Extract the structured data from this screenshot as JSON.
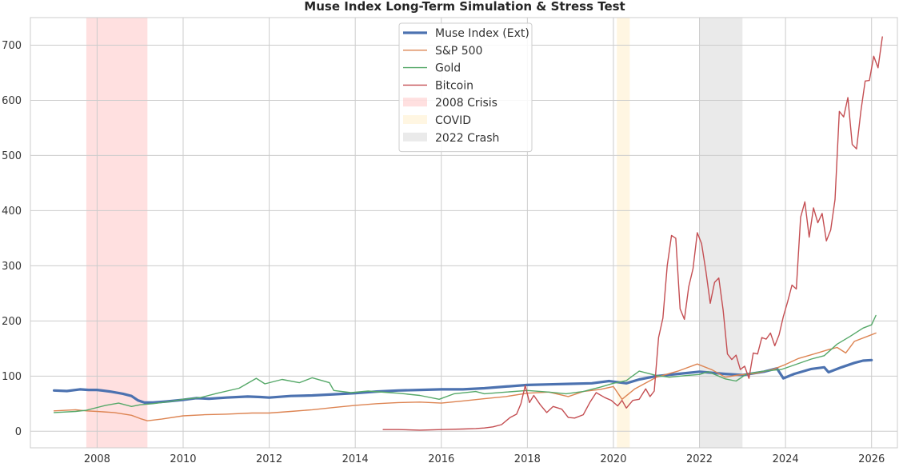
{
  "chart_data": {
    "type": "line",
    "title": "Muse Index Long-Term Simulation & Stress Test",
    "xlabel": "",
    "ylabel": "",
    "xlim": [
      2006.45,
      2026.6
    ],
    "ylim": [
      -30,
      750
    ],
    "x_ticks": [
      2008,
      2010,
      2012,
      2014,
      2016,
      2018,
      2020,
      2022,
      2024,
      2026
    ],
    "y_ticks": [
      0,
      100,
      200,
      300,
      400,
      500,
      600,
      700
    ],
    "grid": true,
    "legend_position": "top-center",
    "shaded_regions": [
      {
        "name": "2008 Crisis",
        "start": 2007.75,
        "end": 2009.17,
        "color": "#ff9999"
      },
      {
        "name": "COVID",
        "start": 2020.08,
        "end": 2020.38,
        "color": "#ffe0a0"
      },
      {
        "name": "2022 Crash",
        "start": 2022.0,
        "end": 2023.0,
        "color": "#bbbbbb"
      }
    ],
    "series": [
      {
        "name": "Muse Index (Ext)",
        "color": "#4c72b0",
        "width": 3.2,
        "points": [
          [
            2007.0,
            74
          ],
          [
            2007.3,
            73
          ],
          [
            2007.6,
            76
          ],
          [
            2007.8,
            75
          ],
          [
            2008.0,
            75
          ],
          [
            2008.3,
            72
          ],
          [
            2008.6,
            68
          ],
          [
            2008.8,
            64
          ],
          [
            2008.95,
            56
          ],
          [
            2009.1,
            52
          ],
          [
            2009.3,
            52
          ],
          [
            2009.6,
            54
          ],
          [
            2010.0,
            57
          ],
          [
            2010.3,
            60
          ],
          [
            2010.6,
            59
          ],
          [
            2011.0,
            61
          ],
          [
            2011.5,
            63
          ],
          [
            2011.8,
            62
          ],
          [
            2012.0,
            61
          ],
          [
            2012.5,
            64
          ],
          [
            2013.0,
            65
          ],
          [
            2013.5,
            67
          ],
          [
            2014.0,
            69
          ],
          [
            2014.5,
            72
          ],
          [
            2015.0,
            74
          ],
          [
            2015.5,
            75
          ],
          [
            2016.0,
            76
          ],
          [
            2016.5,
            76
          ],
          [
            2017.0,
            78
          ],
          [
            2017.5,
            81
          ],
          [
            2018.0,
            84
          ],
          [
            2018.5,
            85
          ],
          [
            2019.0,
            86
          ],
          [
            2019.5,
            87
          ],
          [
            2019.9,
            91
          ],
          [
            2020.1,
            89
          ],
          [
            2020.3,
            87
          ],
          [
            2020.6,
            94
          ],
          [
            2021.0,
            100
          ],
          [
            2021.5,
            104
          ],
          [
            2022.0,
            108
          ],
          [
            2022.3,
            106
          ],
          [
            2022.6,
            104
          ],
          [
            2023.0,
            102
          ],
          [
            2023.5,
            108
          ],
          [
            2023.8,
            114
          ],
          [
            2023.95,
            96
          ],
          [
            2024.2,
            104
          ],
          [
            2024.6,
            113
          ],
          [
            2024.9,
            116
          ],
          [
            2025.0,
            107
          ],
          [
            2025.3,
            116
          ],
          [
            2025.6,
            124
          ],
          [
            2025.8,
            128
          ],
          [
            2026.0,
            129
          ]
        ]
      },
      {
        "name": "S&P 500",
        "color": "#dd8452",
        "width": 1.4,
        "points": [
          [
            2007.0,
            37
          ],
          [
            2007.5,
            39
          ],
          [
            2007.75,
            37
          ],
          [
            2008.0,
            36
          ],
          [
            2008.4,
            34
          ],
          [
            2008.8,
            29
          ],
          [
            2009.0,
            23
          ],
          [
            2009.17,
            19
          ],
          [
            2009.5,
            22
          ],
          [
            2010.0,
            28
          ],
          [
            2010.5,
            30
          ],
          [
            2011.0,
            31
          ],
          [
            2011.6,
            33
          ],
          [
            2012.0,
            33
          ],
          [
            2012.5,
            36
          ],
          [
            2013.0,
            39
          ],
          [
            2013.5,
            43
          ],
          [
            2014.0,
            47
          ],
          [
            2014.5,
            50
          ],
          [
            2015.0,
            52
          ],
          [
            2015.5,
            53
          ],
          [
            2016.0,
            51
          ],
          [
            2016.5,
            55
          ],
          [
            2017.0,
            59
          ],
          [
            2017.5,
            63
          ],
          [
            2018.0,
            69
          ],
          [
            2018.5,
            71
          ],
          [
            2018.95,
            63
          ],
          [
            2019.3,
            72
          ],
          [
            2019.7,
            76
          ],
          [
            2020.0,
            81
          ],
          [
            2020.2,
            58
          ],
          [
            2020.5,
            77
          ],
          [
            2021.0,
            98
          ],
          [
            2021.5,
            109
          ],
          [
            2021.95,
            122
          ],
          [
            2022.3,
            111
          ],
          [
            2022.6,
            98
          ],
          [
            2022.9,
            102
          ],
          [
            2023.3,
            105
          ],
          [
            2023.7,
            112
          ],
          [
            2024.0,
            121
          ],
          [
            2024.3,
            132
          ],
          [
            2024.7,
            141
          ],
          [
            2025.0,
            148
          ],
          [
            2025.2,
            152
          ],
          [
            2025.4,
            142
          ],
          [
            2025.6,
            163
          ],
          [
            2025.9,
            172
          ],
          [
            2026.1,
            178
          ]
        ]
      },
      {
        "name": "Gold",
        "color": "#55a868",
        "width": 1.4,
        "points": [
          [
            2007.0,
            34
          ],
          [
            2007.5,
            36
          ],
          [
            2007.75,
            38
          ],
          [
            2008.2,
            47
          ],
          [
            2008.5,
            51
          ],
          [
            2008.8,
            45
          ],
          [
            2009.0,
            48
          ],
          [
            2009.3,
            50
          ],
          [
            2009.7,
            54
          ],
          [
            2010.0,
            58
          ],
          [
            2010.4,
            61
          ],
          [
            2010.8,
            69
          ],
          [
            2011.3,
            78
          ],
          [
            2011.7,
            96
          ],
          [
            2011.9,
            86
          ],
          [
            2012.3,
            94
          ],
          [
            2012.7,
            88
          ],
          [
            2013.0,
            97
          ],
          [
            2013.4,
            88
          ],
          [
            2013.5,
            74
          ],
          [
            2013.9,
            70
          ],
          [
            2014.3,
            73
          ],
          [
            2014.8,
            70
          ],
          [
            2015.0,
            69
          ],
          [
            2015.5,
            65
          ],
          [
            2015.95,
            58
          ],
          [
            2016.3,
            68
          ],
          [
            2016.8,
            72
          ],
          [
            2017.0,
            68
          ],
          [
            2017.5,
            71
          ],
          [
            2018.0,
            74
          ],
          [
            2018.5,
            71
          ],
          [
            2018.9,
            68
          ],
          [
            2019.3,
            72
          ],
          [
            2019.7,
            80
          ],
          [
            2020.0,
            87
          ],
          [
            2020.3,
            92
          ],
          [
            2020.6,
            109
          ],
          [
            2021.0,
            101
          ],
          [
            2021.3,
            98
          ],
          [
            2021.7,
            101
          ],
          [
            2022.0,
            103
          ],
          [
            2022.2,
            108
          ],
          [
            2022.6,
            95
          ],
          [
            2022.85,
            91
          ],
          [
            2023.1,
            104
          ],
          [
            2023.5,
            109
          ],
          [
            2023.9,
            112
          ],
          [
            2024.2,
            120
          ],
          [
            2024.6,
            131
          ],
          [
            2024.9,
            137
          ],
          [
            2025.2,
            158
          ],
          [
            2025.5,
            172
          ],
          [
            2025.8,
            187
          ],
          [
            2026.0,
            193
          ],
          [
            2026.1,
            210
          ]
        ]
      },
      {
        "name": "Bitcoin",
        "color": "#c44e52",
        "width": 1.4,
        "points": [
          [
            2014.65,
            3
          ],
          [
            2015.0,
            3
          ],
          [
            2015.5,
            2
          ],
          [
            2016.0,
            3
          ],
          [
            2016.5,
            4
          ],
          [
            2016.8,
            5
          ],
          [
            2017.0,
            6
          ],
          [
            2017.2,
            8
          ],
          [
            2017.4,
            12
          ],
          [
            2017.6,
            25
          ],
          [
            2017.75,
            31
          ],
          [
            2017.85,
            50
          ],
          [
            2017.95,
            83
          ],
          [
            2018.05,
            52
          ],
          [
            2018.15,
            65
          ],
          [
            2018.3,
            48
          ],
          [
            2018.45,
            34
          ],
          [
            2018.6,
            45
          ],
          [
            2018.8,
            40
          ],
          [
            2018.95,
            25
          ],
          [
            2019.1,
            24
          ],
          [
            2019.3,
            30
          ],
          [
            2019.45,
            52
          ],
          [
            2019.6,
            70
          ],
          [
            2019.8,
            61
          ],
          [
            2019.95,
            56
          ],
          [
            2020.1,
            46
          ],
          [
            2020.2,
            56
          ],
          [
            2020.3,
            42
          ],
          [
            2020.45,
            56
          ],
          [
            2020.6,
            58
          ],
          [
            2020.75,
            77
          ],
          [
            2020.85,
            63
          ],
          [
            2020.95,
            73
          ],
          [
            2021.05,
            170
          ],
          [
            2021.15,
            205
          ],
          [
            2021.25,
            300
          ],
          [
            2021.35,
            355
          ],
          [
            2021.45,
            350
          ],
          [
            2021.55,
            222
          ],
          [
            2021.65,
            203
          ],
          [
            2021.75,
            262
          ],
          [
            2021.85,
            295
          ],
          [
            2021.95,
            360
          ],
          [
            2022.05,
            340
          ],
          [
            2022.15,
            290
          ],
          [
            2022.25,
            232
          ],
          [
            2022.35,
            270
          ],
          [
            2022.45,
            278
          ],
          [
            2022.55,
            220
          ],
          [
            2022.65,
            140
          ],
          [
            2022.75,
            130
          ],
          [
            2022.85,
            138
          ],
          [
            2022.95,
            112
          ],
          [
            2023.05,
            118
          ],
          [
            2023.15,
            96
          ],
          [
            2023.25,
            142
          ],
          [
            2023.35,
            140
          ],
          [
            2023.45,
            170
          ],
          [
            2023.55,
            167
          ],
          [
            2023.65,
            178
          ],
          [
            2023.75,
            155
          ],
          [
            2023.85,
            175
          ],
          [
            2023.95,
            208
          ],
          [
            2024.05,
            235
          ],
          [
            2024.15,
            265
          ],
          [
            2024.25,
            258
          ],
          [
            2024.35,
            388
          ],
          [
            2024.45,
            416
          ],
          [
            2024.55,
            352
          ],
          [
            2024.65,
            405
          ],
          [
            2024.75,
            378
          ],
          [
            2024.85,
            395
          ],
          [
            2024.95,
            345
          ],
          [
            2025.05,
            365
          ],
          [
            2025.15,
            420
          ],
          [
            2025.25,
            580
          ],
          [
            2025.35,
            570
          ],
          [
            2025.45,
            605
          ],
          [
            2025.55,
            520
          ],
          [
            2025.65,
            512
          ],
          [
            2025.75,
            580
          ],
          [
            2025.85,
            635
          ],
          [
            2025.95,
            636
          ],
          [
            2026.05,
            680
          ],
          [
            2026.15,
            659
          ],
          [
            2026.25,
            715
          ]
        ]
      }
    ]
  }
}
